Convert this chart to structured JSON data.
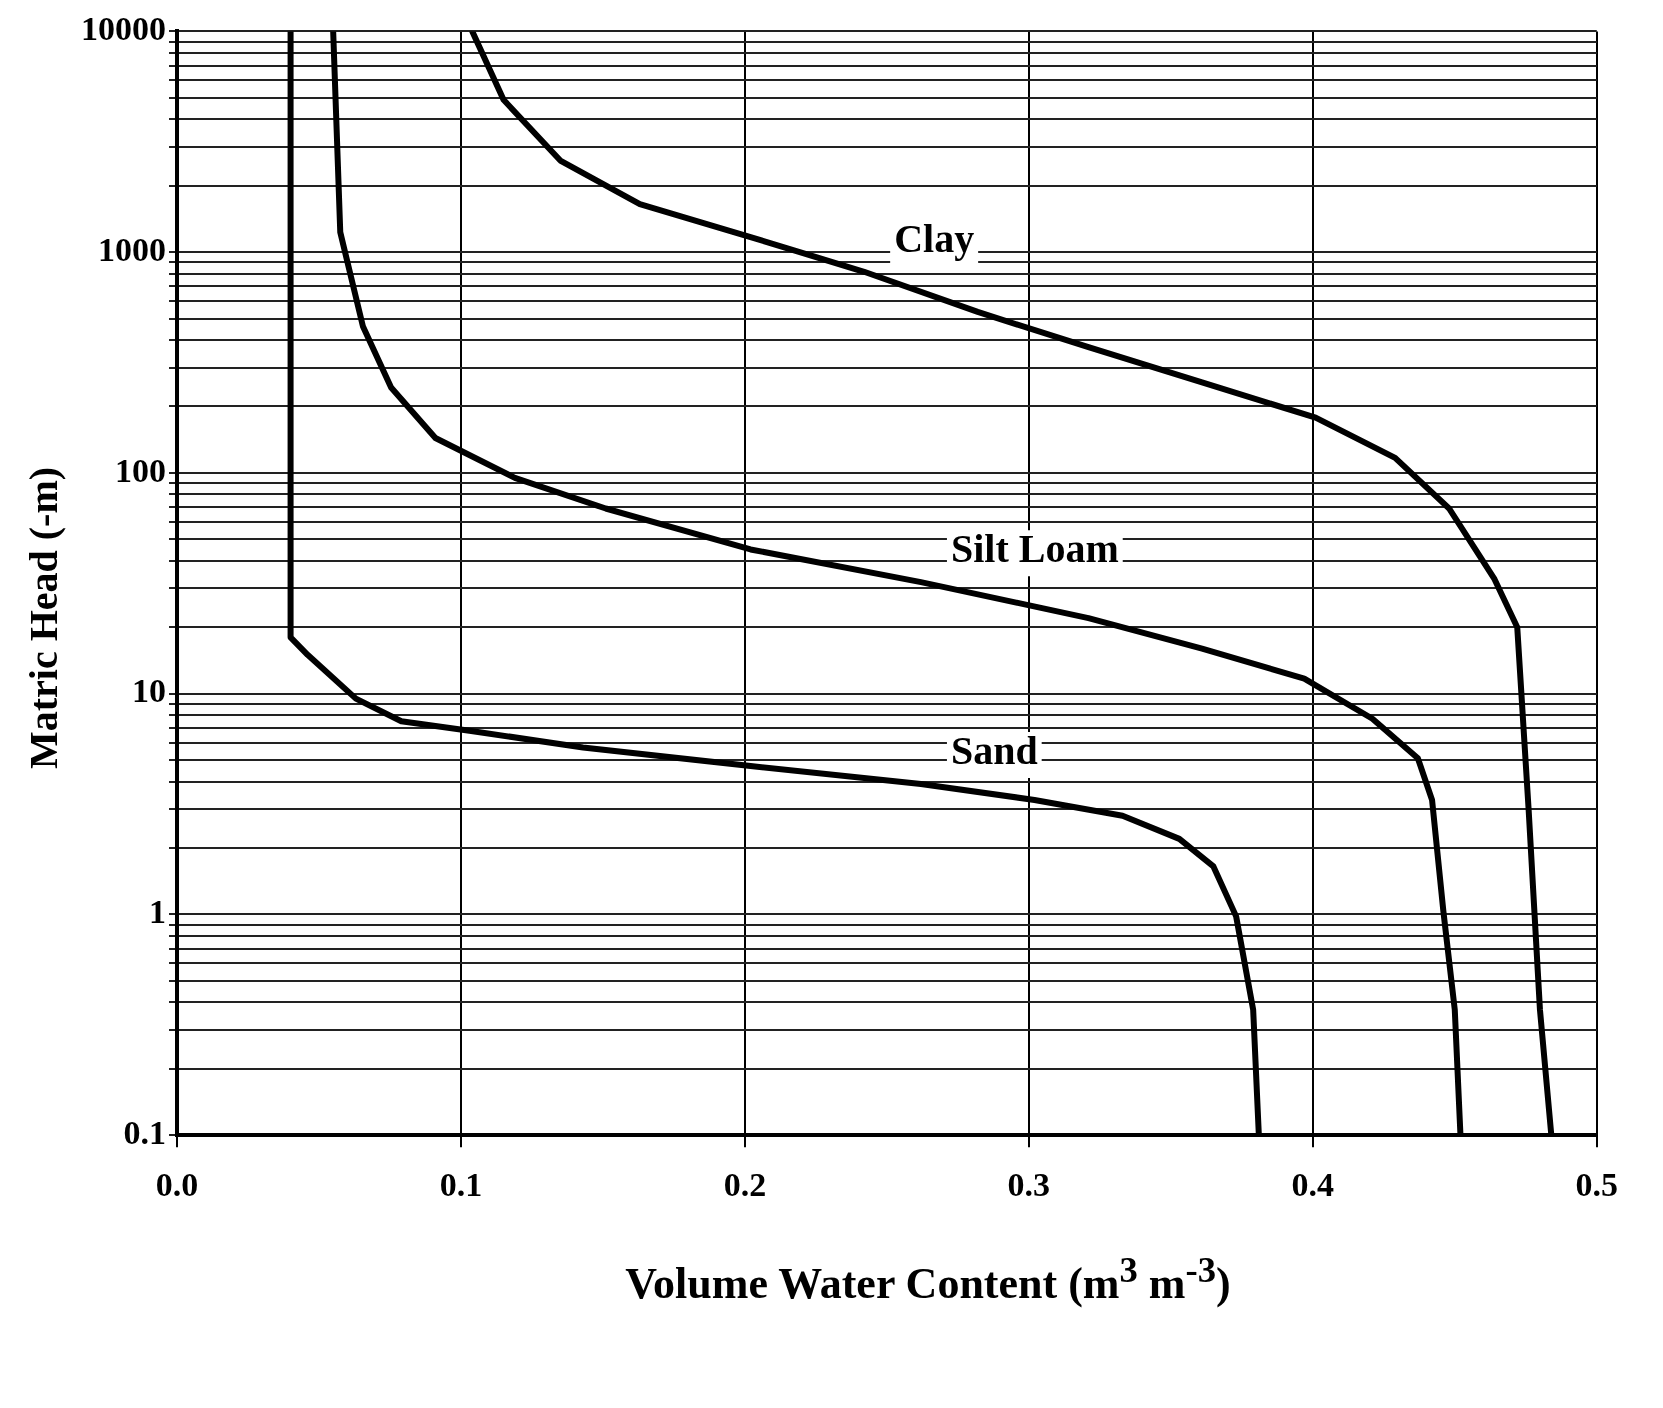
{
  "chart_data": {
    "type": "line",
    "xlabel": "Volume Water Content (m$^{3}$ m$^{-3}$)",
    "ylabel": "Matric Head (-m)",
    "log": "y",
    "grid": true,
    "legend": false,
    "marker": "none",
    "line_style": "solid",
    "xlim": [
      0,
      0.5
    ],
    "xticks": [
      {
        "value": 0,
        "label": "0.0"
      },
      0.1,
      0.2,
      0.3,
      0.4,
      0.5
    ],
    "ylim": [
      0.1,
      10000
    ],
    "yticks": [
      0.1,
      {
        "value": 0.2,
        "label": null
      },
      {
        "value": 0.3,
        "label": null
      },
      {
        "value": 0.4,
        "label": null
      },
      {
        "value": 0.5,
        "label": null
      },
      {
        "value": 0.6,
        "label": null
      },
      {
        "value": 0.7,
        "label": null
      },
      {
        "value": 0.8,
        "label": null
      },
      {
        "value": 0.9,
        "label": null
      },
      1,
      {
        "value": 2,
        "label": null
      },
      {
        "value": 3,
        "label": null
      },
      {
        "value": 4,
        "label": null
      },
      {
        "value": 5,
        "label": null
      },
      {
        "value": 6,
        "label": null
      },
      {
        "value": 7,
        "label": null
      },
      {
        "value": 8,
        "label": null
      },
      {
        "value": 9,
        "label": null
      },
      10,
      {
        "value": 20,
        "label": null
      },
      {
        "value": 30,
        "label": null
      },
      {
        "value": 40,
        "label": null
      },
      {
        "value": 50,
        "label": null
      },
      {
        "value": 60,
        "label": null
      },
      {
        "value": 70,
        "label": null
      },
      {
        "value": 80,
        "label": null
      },
      {
        "value": 90,
        "label": null
      },
      100,
      {
        "value": 200,
        "label": null
      },
      {
        "value": 300,
        "label": null
      },
      {
        "value": 400,
        "label": null
      },
      {
        "value": 500,
        "label": null
      },
      {
        "value": 600,
        "label": null
      },
      {
        "value": 700,
        "label": null
      },
      {
        "value": 800,
        "label": null
      },
      {
        "value": 900,
        "label": null
      },
      1000,
      {
        "value": 2000,
        "label": null
      },
      {
        "value": 3000,
        "label": null
      },
      {
        "value": 4000,
        "label": null
      },
      {
        "value": 5000,
        "label": null
      },
      {
        "value": 6000,
        "label": null
      },
      {
        "value": 7000,
        "label": null
      },
      {
        "value": 8000,
        "label": null
      },
      {
        "value": 9000,
        "label": null
      },
      10000
    ],
    "series": [
      {
        "name": "Clay",
        "color": "#000000",
        "x": [
          0.104,
          0.115,
          0.135,
          0.163,
          0.202,
          0.242,
          0.282,
          0.321,
          0.361,
          0.401,
          0.429,
          0.448,
          0.464,
          0.472,
          0.476,
          0.48,
          0.484
        ],
        "values": [
          10000,
          4900,
          2600,
          1650,
          1170,
          815,
          536,
          371,
          257,
          178,
          117,
          69,
          33,
          20,
          3,
          0.37,
          0.1
        ]
      },
      {
        "name": "Silt Loam",
        "color": "#000000",
        "x": [
          0.055,
          0.0575,
          0.0655,
          0.0754,
          0.091,
          0.119,
          0.151,
          0.202,
          0.262,
          0.321,
          0.361,
          0.397,
          0.421,
          0.437,
          0.442,
          0.446,
          0.45,
          0.452
        ],
        "values": [
          10000,
          1230,
          460,
          244,
          144,
          95,
          69,
          45,
          32,
          22,
          16,
          11.7,
          7.7,
          5.1,
          3.3,
          1.03,
          0.37,
          0.1
        ]
      },
      {
        "name": "Sand",
        "color": "#000000",
        "x": [
          0.04,
          0.04,
          0.046,
          0.063,
          0.079,
          0.103,
          0.143,
          0.202,
          0.262,
          0.302,
          0.333,
          0.353,
          0.365,
          0.373,
          0.379,
          0.381
        ],
        "values": [
          10000,
          18,
          15,
          9.5,
          7.5,
          6.8,
          5.7,
          4.7,
          3.9,
          3.3,
          2.8,
          2.2,
          1.65,
          0.98,
          0.37,
          0.1
        ]
      }
    ]
  }
}
